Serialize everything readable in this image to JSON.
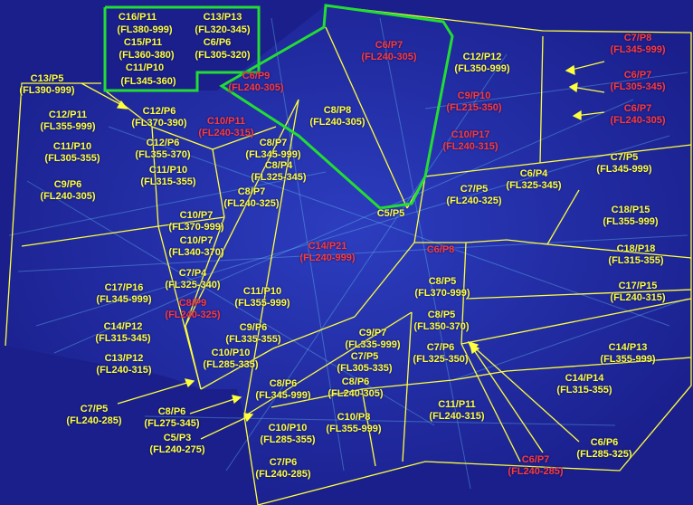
{
  "colors": {
    "background": "#1a1f8c",
    "sector_lines": "#ffff3c",
    "highlight_border": "#22dd33",
    "label_yellow": "#ffff3c",
    "label_red": "#ff3a3a"
  },
  "legend": {
    "rows": [
      [
        "C16/P11",
        "C13/P13"
      ],
      [
        "(FL380-999)",
        "(FL320-345)"
      ],
      [
        "C15/P11",
        "C6/P6"
      ],
      [
        "(FL360-380)",
        "(FL305-320)"
      ],
      [
        "C11/P10",
        ""
      ],
      [
        "(FL345-360)",
        ""
      ]
    ]
  },
  "labels": [
    {
      "id": "c13p5",
      "name": "C13/P5",
      "fl": "(FL390-999)",
      "color": "yellow"
    },
    {
      "id": "c12p11",
      "name": "C12/P11",
      "fl": "(FL355-999)",
      "color": "yellow"
    },
    {
      "id": "c11p10a",
      "name": "C11/P10",
      "fl": "(FL305-355)",
      "color": "yellow"
    },
    {
      "id": "c9p6a",
      "name": "C9/P6",
      "fl": "(FL240-305)",
      "color": "yellow"
    },
    {
      "id": "c12p6a",
      "name": "C12/P6",
      "fl": "(FL370-390)",
      "color": "yellow"
    },
    {
      "id": "c12p6b",
      "name": "C12/P6",
      "fl": "(FL355-370)",
      "color": "yellow"
    },
    {
      "id": "c11p10b",
      "name": "C11/P10",
      "fl": "(FL315-355)",
      "color": "yellow"
    },
    {
      "id": "c10p11",
      "name": "C10/P11",
      "fl": "(FL240-315)",
      "color": "red"
    },
    {
      "id": "c6p9",
      "name": "C6/P9",
      "fl": "(FL240-305)",
      "color": "red"
    },
    {
      "id": "c8p8a",
      "name": "C8/P8",
      "fl": "(FL240-305)",
      "color": "yellow"
    },
    {
      "id": "c8p7a",
      "name": "C8/P7",
      "fl": "(FL345-999)",
      "color": "yellow"
    },
    {
      "id": "c8p4",
      "name": "C8/P4",
      "fl": "(FL325-345)",
      "color": "yellow"
    },
    {
      "id": "c8p7b",
      "name": "C8/P7",
      "fl": "(FL240-325)",
      "color": "yellow"
    },
    {
      "id": "c6p7a",
      "name": "C6/P7",
      "fl": "(FL240-305)",
      "color": "red"
    },
    {
      "id": "c12p12",
      "name": "C12/P12",
      "fl": "(FL350-999)",
      "color": "yellow"
    },
    {
      "id": "c9p10",
      "name": "C9/P10",
      "fl": "(FL215-350)",
      "color": "red"
    },
    {
      "id": "c10p17",
      "name": "C10/P17",
      "fl": "(FL240-315)",
      "color": "red"
    },
    {
      "id": "c7p8",
      "name": "C7/P8",
      "fl": "(FL345-999)",
      "color": "red"
    },
    {
      "id": "c6p7b",
      "name": "C6/P7",
      "fl": "(FL305-345)",
      "color": "red"
    },
    {
      "id": "c6p7c",
      "name": "C6/P7",
      "fl": "(FL240-305)",
      "color": "red"
    },
    {
      "id": "c7p5a",
      "name": "C7/P5",
      "fl": "(FL345-999)",
      "color": "yellow"
    },
    {
      "id": "c6p4",
      "name": "C6/P4",
      "fl": "(FL325-345)",
      "color": "yellow"
    },
    {
      "id": "c7p5b",
      "name": "C7/P5",
      "fl": "(FL240-325)",
      "color": "yellow"
    },
    {
      "id": "c5p5",
      "name": "C5/P5",
      "fl": "",
      "color": "yellow"
    },
    {
      "id": "c10p7a",
      "name": "C10/P7",
      "fl": "(FL370-999)",
      "color": "yellow"
    },
    {
      "id": "c10p7b",
      "name": "C10/P7",
      "fl": "(FL340-370)",
      "color": "yellow"
    },
    {
      "id": "c7p4",
      "name": "C7/P4",
      "fl": "(FL325-340)",
      "color": "yellow"
    },
    {
      "id": "c8p9",
      "name": "C8/P9",
      "fl": "(FL240-325)",
      "color": "red"
    },
    {
      "id": "c14p21",
      "name": "C14/P21",
      "fl": "(FL240-999)",
      "color": "red"
    },
    {
      "id": "c6p8",
      "name": "C6/P8",
      "fl": "",
      "color": "red"
    },
    {
      "id": "c18p15",
      "name": "C18/P15",
      "fl": "(FL355-999)",
      "color": "yellow"
    },
    {
      "id": "c18p18",
      "name": "C18/P18",
      "fl": "(FL315-355)",
      "color": "yellow"
    },
    {
      "id": "c17p15",
      "name": "C17/P15",
      "fl": "(FL240-315)",
      "color": "yellow"
    },
    {
      "id": "c17p16",
      "name": "C17/P16",
      "fl": "(FL345-999)",
      "color": "yellow"
    },
    {
      "id": "c14p12",
      "name": "C14/P12",
      "fl": "(FL315-345)",
      "color": "yellow"
    },
    {
      "id": "c13p12",
      "name": "C13/P12",
      "fl": "(FL240-315)",
      "color": "yellow"
    },
    {
      "id": "c11p10c",
      "name": "C11/P10",
      "fl": "(FL355-999)",
      "color": "yellow"
    },
    {
      "id": "c9p6b",
      "name": "C9/P6",
      "fl": "(FL335-355)",
      "color": "yellow"
    },
    {
      "id": "c10p10a",
      "name": "C10/P10",
      "fl": "(FL285-335)",
      "color": "yellow"
    },
    {
      "id": "c8p5a",
      "name": "C8/P5",
      "fl": "(FL370-999)",
      "color": "yellow"
    },
    {
      "id": "c8p5b",
      "name": "C8/P5",
      "fl": "(FL350-370)",
      "color": "yellow"
    },
    {
      "id": "c7p6a",
      "name": "C7/P6",
      "fl": "(FL325-350)",
      "color": "yellow"
    },
    {
      "id": "c9p7",
      "name": "C9/P7",
      "fl": "(FL335-999)",
      "color": "yellow"
    },
    {
      "id": "c7p5c",
      "name": "C7/P5",
      "fl": "(FL305-335)",
      "color": "yellow"
    },
    {
      "id": "c8p6a",
      "name": "C8/P6",
      "fl": "(FL240-305)",
      "color": "yellow"
    },
    {
      "id": "c8p6b",
      "name": "C8/P6",
      "fl": "(FL345-999)",
      "color": "yellow"
    },
    {
      "id": "c14p13",
      "name": "C14/P13",
      "fl": "(FL355-999)",
      "color": "yellow"
    },
    {
      "id": "c14p14",
      "name": "C14/P14",
      "fl": "(FL315-355)",
      "color": "yellow"
    },
    {
      "id": "c11p11",
      "name": "C11/P11",
      "fl": "(FL240-315)",
      "color": "yellow"
    },
    {
      "id": "c10p8",
      "name": "C10/P8",
      "fl": "(FL355-999)",
      "color": "yellow"
    },
    {
      "id": "c10p10b",
      "name": "C10/P10",
      "fl": "(FL285-355)",
      "color": "yellow"
    },
    {
      "id": "c7p6b",
      "name": "C7/P6",
      "fl": "(FL240-285)",
      "color": "yellow"
    },
    {
      "id": "c7p5d",
      "name": "C7/P5",
      "fl": "(FL240-285)",
      "color": "yellow"
    },
    {
      "id": "c8p6c",
      "name": "C8/P6",
      "fl": "(FL275-345)",
      "color": "yellow"
    },
    {
      "id": "c5p3",
      "name": "C5/P3",
      "fl": "(FL240-275)",
      "color": "yellow"
    },
    {
      "id": "c6p6",
      "name": "C6/P6",
      "fl": "(FL285-325)",
      "color": "yellow"
    },
    {
      "id": "c6p7d",
      "name": "C6/P7",
      "fl": "(FL240-285)",
      "color": "red"
    }
  ]
}
